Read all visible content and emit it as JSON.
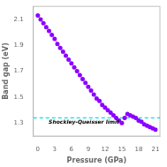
{
  "chart_data": {
    "type": "scatter",
    "xlabel": "Pressure (GPa)",
    "ylabel": "Band gap (eV)",
    "x": [
      0,
      0.5,
      1,
      1.5,
      2,
      2.5,
      3,
      3.5,
      4,
      4.5,
      5,
      5.5,
      6,
      6.5,
      7,
      7.5,
      8,
      8.5,
      9,
      9.5,
      10,
      10.5,
      11,
      11.5,
      12,
      12.5,
      13,
      13.5,
      14,
      14.5,
      15,
      15.5,
      16,
      16.5,
      17,
      17.5,
      18,
      18.5,
      19,
      19.5,
      20,
      20.5,
      21
    ],
    "series": [
      {
        "type": "line",
        "line_style": "dashed",
        "color": "#CC80FF",
        "values": [
          2.13,
          2.1,
          2.07,
          2.04,
          2.01,
          1.98,
          1.95,
          1.91,
          1.88,
          1.85,
          1.82,
          1.79,
          1.76,
          1.73,
          1.7,
          1.67,
          1.64,
          1.61,
          1.58,
          1.55,
          1.52,
          1.49,
          1.47,
          1.44,
          1.42,
          1.4,
          1.38,
          1.36,
          1.34,
          1.32,
          1.3,
          1.34,
          1.37,
          1.36,
          1.35,
          1.34,
          1.32,
          1.31,
          1.29,
          1.28,
          1.27,
          1.26,
          1.25
        ]
      },
      {
        "type": "scatter",
        "marker": "o",
        "color": "#8B00FF",
        "values": [
          2.13,
          2.1,
          2.07,
          2.04,
          2.01,
          1.98,
          1.95,
          1.91,
          1.88,
          1.85,
          1.82,
          1.79,
          1.76,
          1.73,
          1.7,
          1.67,
          1.64,
          1.61,
          1.58,
          1.55,
          1.52,
          1.49,
          1.47,
          1.44,
          1.42,
          1.4,
          1.38,
          1.36,
          1.34,
          1.32,
          1.3,
          1.34,
          1.37,
          1.36,
          1.35,
          1.34,
          1.32,
          1.31,
          1.29,
          1.28,
          1.27,
          1.26,
          1.25
        ]
      }
    ],
    "reference_lines": [
      {
        "y": 1.34,
        "color": "#00E5E5",
        "line_style": "dashed",
        "label": "Shockley-Queisser limit"
      }
    ],
    "xlim": [
      -0.8,
      21.8
    ],
    "ylim": [
      1.2,
      2.2
    ],
    "xticks": [
      0,
      3,
      6,
      9,
      12,
      15,
      18,
      21
    ],
    "yticks": [
      1.3,
      1.5,
      1.7,
      1.9,
      2.1
    ],
    "grid": false
  }
}
